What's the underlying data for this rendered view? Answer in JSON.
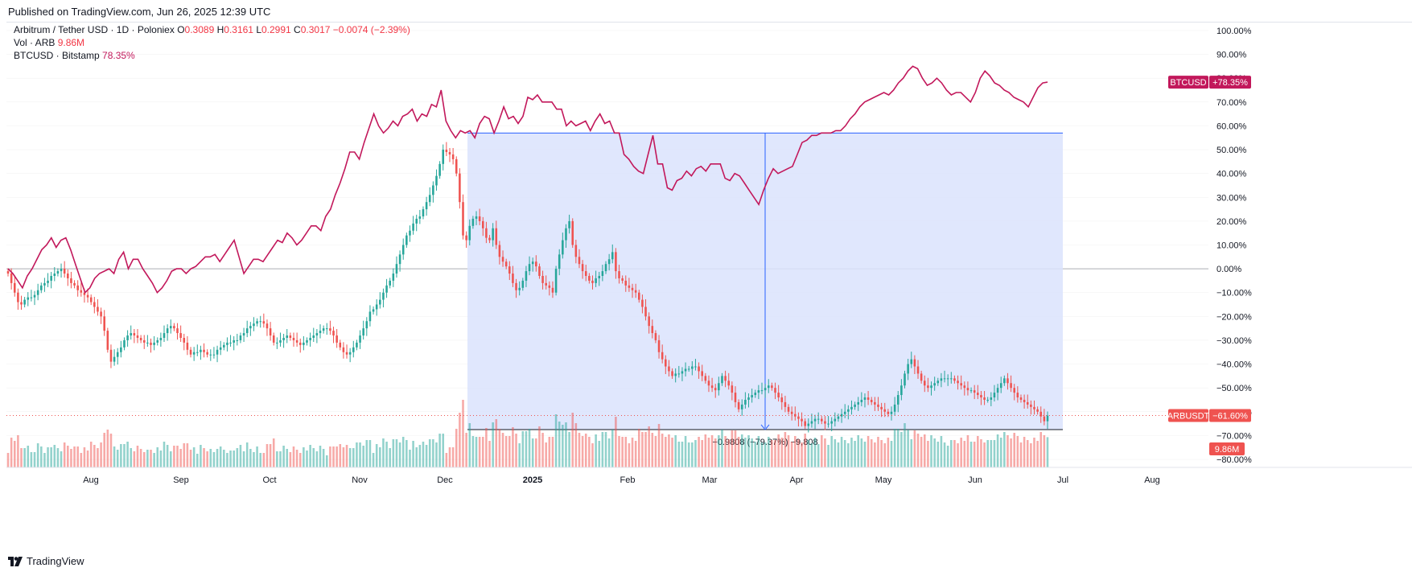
{
  "published": "Published on TradingView.com, Jun 26, 2025 12:39 UTC",
  "footer": "TradingView",
  "legend": {
    "symbol": "Arbitrum / Tether USD · 1D · Poloniex",
    "o_label": "O",
    "o": "0.3089",
    "h_label": "H",
    "h": "0.3161",
    "l_label": "L",
    "l": "0.2991",
    "c_label": "C",
    "c": "0.3017",
    "change": "−0.0074 (−2.39%)",
    "vol_label": "Vol · ARB",
    "vol": "9.86M",
    "btc_label": "BTCUSD · Bitstamp",
    "btc": "78.35%"
  },
  "colors": {
    "up": "#26a69a",
    "down": "#ef5350",
    "btc": "#c2185b",
    "range_fill": "#dbe3fd",
    "range_line": "#2962ff",
    "grid": "#e6e6e6"
  },
  "chart_data": {
    "type": "candlestick",
    "y_axis": {
      "ylim": [
        -80,
        100
      ],
      "ticks": [
        "100.00%",
        "90.00%",
        "80.00%",
        "70.00%",
        "60.00%",
        "50.00%",
        "40.00%",
        "30.00%",
        "20.00%",
        "10.00%",
        "0.00%",
        "−10.00%",
        "−20.00%",
        "−30.00%",
        "−40.00%",
        "−50.00%",
        "−60.00%",
        "−70.00%",
        "−80.00%"
      ]
    },
    "x_axis": {
      "ticks": [
        "Aug",
        "Sep",
        "Oct",
        "Nov",
        "Dec",
        "2025",
        "Feb",
        "Mar",
        "Apr",
        "May",
        "Jun",
        "Jul",
        "Aug"
      ],
      "bold": "2025"
    },
    "btc_series": {
      "name": "BTCUSD",
      "badge": "BTCUSD",
      "value": "+78.35%",
      "last": 78.35,
      "points": [
        0,
        -2,
        -5,
        -8,
        -3,
        0,
        4,
        8,
        10,
        13,
        9,
        12,
        13,
        8,
        2,
        -4,
        -10,
        -8,
        -4,
        -2,
        -1,
        0,
        -2,
        4,
        7,
        0,
        4,
        4,
        0,
        -3,
        -6,
        -10,
        -8,
        -5,
        -1,
        0,
        0,
        -2,
        0,
        1,
        3,
        5,
        5,
        6,
        3,
        6,
        9,
        12,
        5,
        -2,
        1,
        4,
        4,
        3,
        6,
        9,
        12,
        11,
        15,
        13,
        10,
        12,
        15,
        18,
        18,
        16,
        22,
        25,
        31,
        36,
        42,
        49,
        49,
        46,
        53,
        59,
        65,
        60,
        57,
        59,
        62,
        60,
        64,
        65,
        67,
        62,
        65,
        64,
        69,
        68,
        75,
        62,
        58,
        55,
        58,
        57,
        58,
        55,
        61,
        64,
        63,
        57,
        62,
        68,
        63,
        64,
        61,
        64,
        72,
        71,
        73,
        70,
        70,
        70,
        67,
        67,
        60,
        62,
        60,
        61,
        62,
        58,
        62,
        65,
        61,
        62,
        57,
        57,
        48,
        46,
        43,
        41,
        40,
        48,
        56,
        44,
        44,
        34,
        33,
        37,
        38,
        41,
        39,
        42,
        43,
        41,
        44,
        44,
        44,
        38,
        37,
        40,
        39,
        36,
        33,
        30,
        27,
        33,
        38,
        42,
        40,
        41,
        42,
        43,
        48,
        53,
        54,
        56,
        56,
        57,
        57,
        57,
        58,
        58,
        60,
        63,
        65,
        68,
        70,
        71,
        72,
        73,
        74,
        73,
        75,
        78,
        80,
        83,
        85,
        84,
        80,
        77,
        78,
        80,
        78,
        75,
        73,
        74,
        74,
        72,
        70,
        74,
        80,
        83,
        81,
        78,
        77,
        75,
        74,
        72,
        71,
        70,
        68,
        72,
        76,
        78,
        78.35
      ]
    },
    "arb_series": {
      "name": "ARBUSDT",
      "badge": "ARBUSDT",
      "value": "−61.60%",
      "last": -61.6,
      "closes": [
        -2,
        -6,
        -10,
        -14,
        -15,
        -13,
        -12,
        -12,
        -11,
        -9,
        -7,
        -6,
        -5,
        -3,
        -2,
        -1,
        0,
        -2,
        -4,
        -6,
        -7,
        -9,
        -10,
        -11,
        -12,
        -14,
        -16,
        -18,
        -20,
        -26,
        -34,
        -39,
        -37,
        -35,
        -33,
        -30,
        -28,
        -27,
        -28,
        -29,
        -30,
        -31,
        -31,
        -32,
        -31,
        -30,
        -29,
        -27,
        -25,
        -24,
        -25,
        -27,
        -29,
        -31,
        -34,
        -36,
        -35,
        -35,
        -34,
        -35,
        -36,
        -36,
        -36,
        -34,
        -33,
        -32,
        -31,
        -31,
        -30,
        -30,
        -28,
        -27,
        -25,
        -24,
        -23,
        -22,
        -22,
        -23,
        -25,
        -28,
        -31,
        -31,
        -30,
        -29,
        -28,
        -29,
        -30,
        -31,
        -32,
        -31,
        -30,
        -29,
        -28,
        -27,
        -26,
        -25,
        -25,
        -26,
        -28,
        -31,
        -33,
        -35,
        -36,
        -35,
        -33,
        -31,
        -28,
        -25,
        -22,
        -18,
        -17,
        -15,
        -13,
        -10,
        -7,
        -5,
        -2,
        2,
        6,
        10,
        14,
        16,
        19,
        21,
        22,
        25,
        28,
        31,
        35,
        39,
        44,
        50,
        49,
        48,
        46,
        40,
        28,
        14,
        12,
        18,
        21,
        22,
        20,
        17,
        13,
        12,
        17,
        10,
        5,
        3,
        1,
        -2,
        -6,
        -9,
        -8,
        -5,
        -1,
        2,
        3,
        1,
        -3,
        -6,
        -7,
        -8,
        -10,
        0,
        6,
        12,
        17,
        20,
        10,
        5,
        2,
        -1,
        -3,
        -5,
        -6,
        -4,
        -3,
        -1,
        2,
        4,
        7,
        -1,
        -4,
        -5,
        -7,
        -8,
        -9,
        -10,
        -13,
        -16,
        -20,
        -24,
        -27,
        -30,
        -35,
        -38,
        -41,
        -43,
        -45,
        -44,
        -44,
        -43,
        -42,
        -42,
        -41,
        -41,
        -43,
        -45,
        -47,
        -49,
        -50,
        -51,
        -48,
        -45,
        -47,
        -49,
        -52,
        -56,
        -59,
        -57,
        -55,
        -54,
        -53,
        -52,
        -51,
        -51,
        -50,
        -49,
        -50,
        -52,
        -54,
        -56,
        -58,
        -60,
        -61,
        -62,
        -63,
        -64,
        -66,
        -65,
        -64,
        -63,
        -63,
        -64,
        -65,
        -65,
        -64,
        -63,
        -62,
        -61,
        -60,
        -59,
        -58,
        -57,
        -56,
        -55,
        -54,
        -55,
        -56,
        -57,
        -58,
        -59,
        -60,
        -61,
        -60,
        -57,
        -53,
        -49,
        -44,
        -40,
        -38,
        -41,
        -44,
        -47,
        -49,
        -50,
        -49,
        -48,
        -47,
        -46,
        -46,
        -46,
        -46,
        -47,
        -48,
        -49,
        -50,
        -51,
        -51,
        -52,
        -53,
        -54,
        -55,
        -55,
        -54,
        -52,
        -50,
        -48,
        -46,
        -48,
        -50,
        -52,
        -54,
        -55,
        -56,
        -57,
        -58,
        -59,
        -60,
        -62,
        -64,
        -61.6
      ],
      "vol_label": "9.86M"
    },
    "measure": {
      "label": "−0.9808 (−79.37%) −9,808",
      "top": 57,
      "bottom": -67.5
    }
  }
}
